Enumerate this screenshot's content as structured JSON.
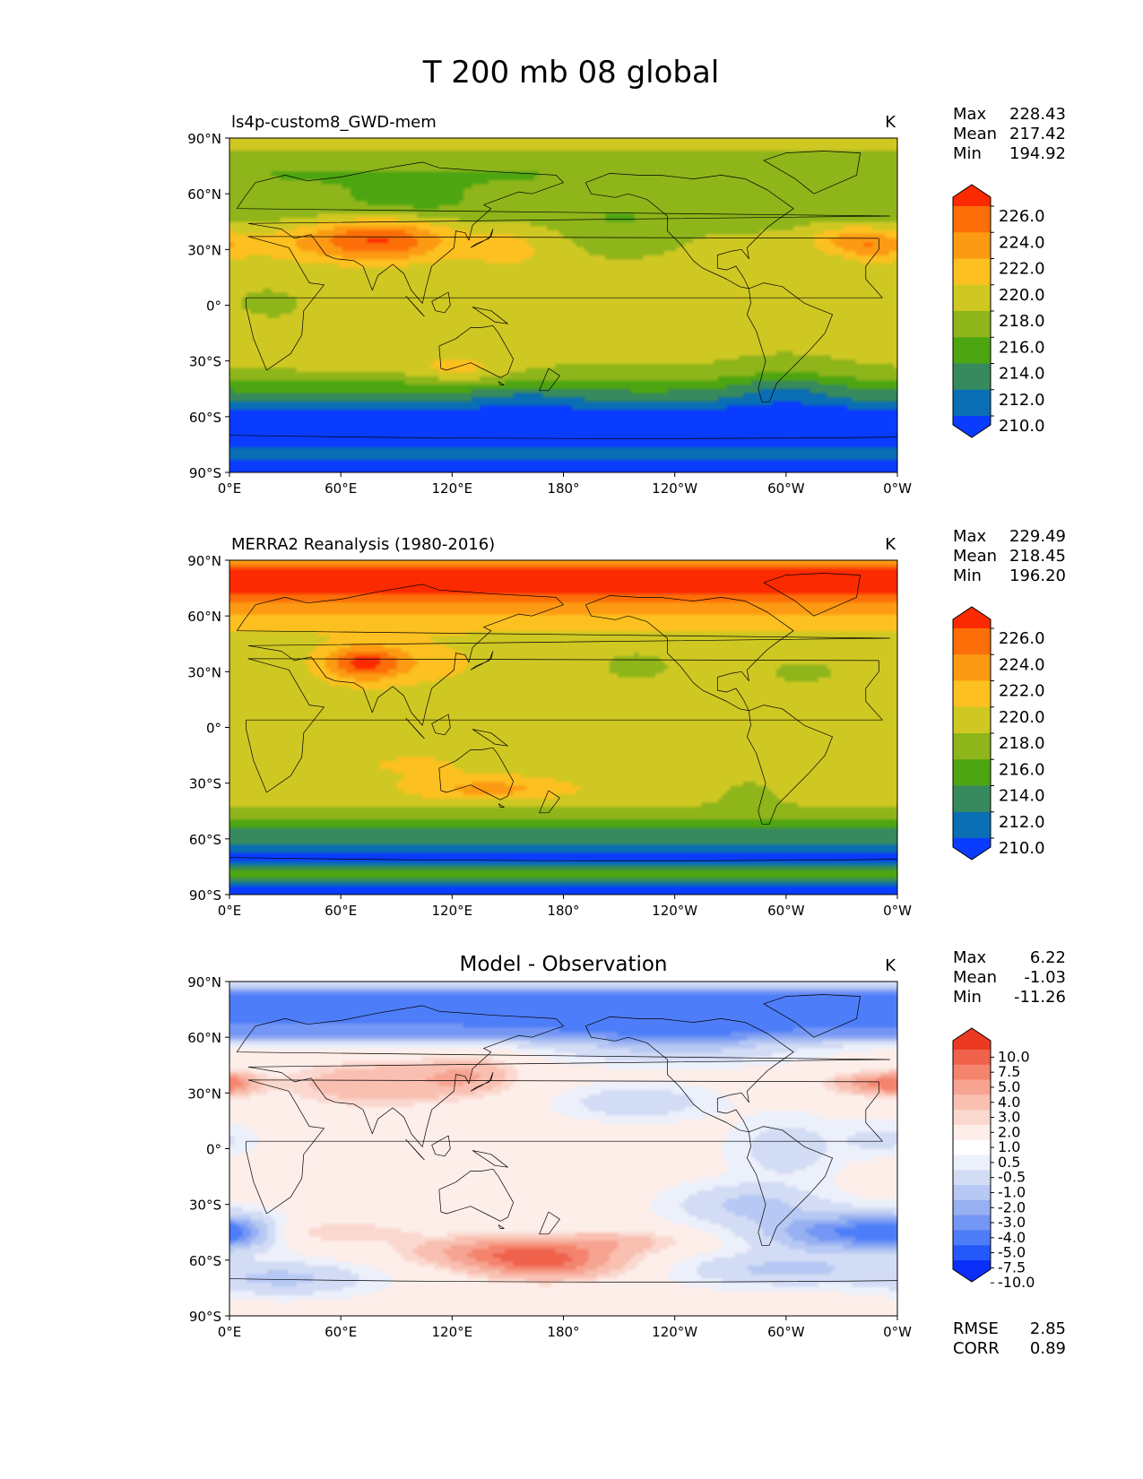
{
  "figure": {
    "title": "T 200 mb 08 global"
  },
  "axes": {
    "lat_labels": [
      "90°N",
      "60°N",
      "30°N",
      "0°",
      "30°S",
      "60°S",
      "90°S"
    ],
    "lon_labels": [
      "0°E",
      "60°E",
      "120°E",
      "180°",
      "120°W",
      "60°W",
      "0°W"
    ]
  },
  "stat_labels": {
    "max": "Max",
    "mean": "Mean",
    "min": "Min",
    "rmse": "RMSE",
    "corr": "CORR"
  },
  "palettes": {
    "abs": [
      "#0a3cff",
      "#0a6eb4",
      "#378a5d",
      "#4ea512",
      "#8eb51a",
      "#cfc823",
      "#fcc020",
      "#fc9b13",
      "#fc6e08",
      "#fc2a00"
    ],
    "diff": [
      "#0a2ef8",
      "#2458fb",
      "#4e7df9",
      "#7497f5",
      "#97b0f1",
      "#b6c8f3",
      "#d3dcf5",
      "#ecf0fb",
      "#ffffff",
      "#fdeeea",
      "#fbd8cf",
      "#f9c0b1",
      "#f6a491",
      "#f4846e",
      "#f0624c",
      "#ec3a22"
    ]
  },
  "panels": [
    {
      "id": "model",
      "title": "ls4p-custom8_GWD-mem",
      "title_style": "left",
      "units": "K",
      "stats": {
        "max": "228.43",
        "mean": "217.42",
        "min": "194.92"
      },
      "colorbar": {
        "type": "abs",
        "ticks": [
          "226.0",
          "224.0",
          "222.0",
          "220.0",
          "218.0",
          "216.0",
          "214.0",
          "212.0",
          "210.0"
        ]
      }
    },
    {
      "id": "obs",
      "title": "MERRA2 Reanalysis (1980-2016)",
      "title_style": "left",
      "units": "K",
      "stats": {
        "max": "229.49",
        "mean": "218.45",
        "min": "196.20"
      },
      "colorbar": {
        "type": "abs",
        "ticks": [
          "226.0",
          "224.0",
          "222.0",
          "220.0",
          "218.0",
          "216.0",
          "214.0",
          "212.0",
          "210.0"
        ]
      }
    },
    {
      "id": "diff",
      "title": "Model - Observation",
      "title_style": "center",
      "units": "K",
      "stats": {
        "max": "6.22",
        "mean": "-1.03",
        "min": "-11.26"
      },
      "extra_stats": {
        "rmse": "2.85",
        "corr": "0.89"
      },
      "colorbar": {
        "type": "diff",
        "ticks": [
          "10.0",
          "7.5",
          "5.0",
          "4.0",
          "3.0",
          "2.0",
          "1.0",
          "0.5",
          "-0.5",
          "-1.0",
          "-2.0",
          "-3.0",
          "-4.0",
          "-5.0",
          "-7.5",
          "-10.0"
        ]
      }
    }
  ]
}
